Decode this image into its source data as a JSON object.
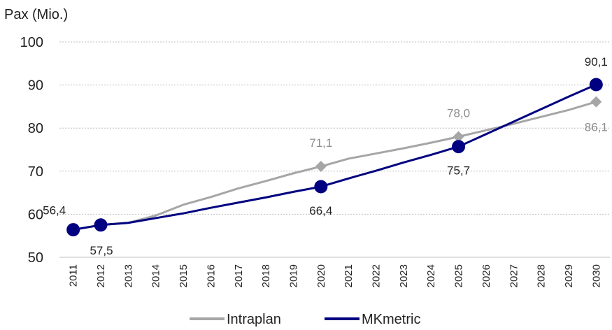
{
  "chart_data": {
    "type": "line",
    "ylabel": "Pax (Mio.)",
    "xlabel": "",
    "ylim": [
      50,
      100
    ],
    "yticks": [
      50,
      60,
      70,
      80,
      90,
      100
    ],
    "grid": "horizontal-dotted",
    "legend_position": "bottom",
    "categories": [
      "2011",
      "2012",
      "2013",
      "2014",
      "2015",
      "2016",
      "2017",
      "2018",
      "2019",
      "2020",
      "2021",
      "2022",
      "2023",
      "2024",
      "2025",
      "2026",
      "2027",
      "2028",
      "2029",
      "2030"
    ],
    "series": [
      {
        "name": "Intraplan",
        "color": "#a6a6a6",
        "marker": "diamond",
        "values": [
          56.4,
          57.5,
          58.0,
          59.7,
          62.2,
          64.0,
          66.0,
          67.7,
          69.5,
          71.1,
          72.9,
          74.1,
          75.3,
          76.6,
          78.0,
          79.5,
          81.0,
          82.6,
          84.2,
          86.1
        ],
        "labeled_points": [
          {
            "x": "2020",
            "value": 71.1,
            "label": "71,1"
          },
          {
            "x": "2025",
            "value": 78.0,
            "label": "78,0"
          },
          {
            "x": "2030",
            "value": 86.1,
            "label": "86,1"
          }
        ]
      },
      {
        "name": "MKmetric",
        "color": "#000080",
        "marker": "circle",
        "values": [
          56.4,
          57.5,
          58.0,
          59.1,
          60.2,
          61.5,
          62.7,
          63.9,
          65.2,
          66.4,
          68.3,
          70.1,
          72.0,
          73.8,
          75.7,
          78.6,
          81.5,
          84.4,
          87.3,
          90.1
        ],
        "labeled_points": [
          {
            "x": "2011",
            "value": 56.4,
            "label": "56,4"
          },
          {
            "x": "2012",
            "value": 57.5,
            "label": "57,5"
          },
          {
            "x": "2020",
            "value": 66.4,
            "label": "66,4"
          },
          {
            "x": "2025",
            "value": 75.7,
            "label": "75,7"
          },
          {
            "x": "2030",
            "value": 90.1,
            "label": "90,1"
          }
        ]
      }
    ]
  },
  "legend": {
    "items": [
      {
        "label": "Intraplan",
        "color": "#a6a6a6"
      },
      {
        "label": "MKmetric",
        "color": "#000080"
      }
    ]
  }
}
